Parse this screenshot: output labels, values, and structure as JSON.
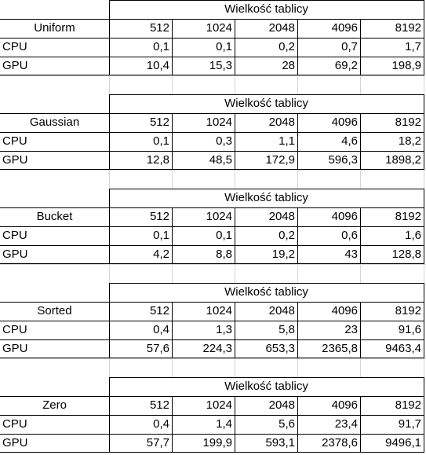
{
  "header_label": "Wielkość tablicy",
  "sizes": [
    "512",
    "1024",
    "2048",
    "4096",
    "8192"
  ],
  "tables": [
    {
      "name": "Uniform",
      "rows": [
        {
          "label": "CPU",
          "values": [
            "0,1",
            "0,1",
            "0,2",
            "0,7",
            "1,7"
          ]
        },
        {
          "label": "GPU",
          "values": [
            "10,4",
            "15,3",
            "28",
            "69,2",
            "198,9"
          ]
        }
      ]
    },
    {
      "name": "Gaussian",
      "rows": [
        {
          "label": "CPU",
          "values": [
            "0,1",
            "0,3",
            "1,1",
            "4,6",
            "18,2"
          ]
        },
        {
          "label": "GPU",
          "values": [
            "12,8",
            "48,5",
            "172,9",
            "596,3",
            "1898,2"
          ]
        }
      ]
    },
    {
      "name": "Bucket",
      "rows": [
        {
          "label": "CPU",
          "values": [
            "0,1",
            "0,1",
            "0,2",
            "0,6",
            "1,6"
          ]
        },
        {
          "label": "GPU",
          "values": [
            "4,2",
            "8,8",
            "19,2",
            "43",
            "128,8"
          ]
        }
      ]
    },
    {
      "name": "Sorted",
      "rows": [
        {
          "label": "CPU",
          "values": [
            "0,4",
            "1,3",
            "5,8",
            "23",
            "91,6"
          ]
        },
        {
          "label": "GPU",
          "values": [
            "57,6",
            "224,3",
            "653,3",
            "2365,8",
            "9463,4"
          ]
        }
      ]
    },
    {
      "name": "Zero",
      "rows": [
        {
          "label": "CPU",
          "values": [
            "0,4",
            "1,4",
            "5,6",
            "23,4",
            "91,7"
          ]
        },
        {
          "label": "GPU",
          "values": [
            "57,7",
            "199,9",
            "593,1",
            "2378,6",
            "9496,1"
          ]
        }
      ]
    }
  ]
}
